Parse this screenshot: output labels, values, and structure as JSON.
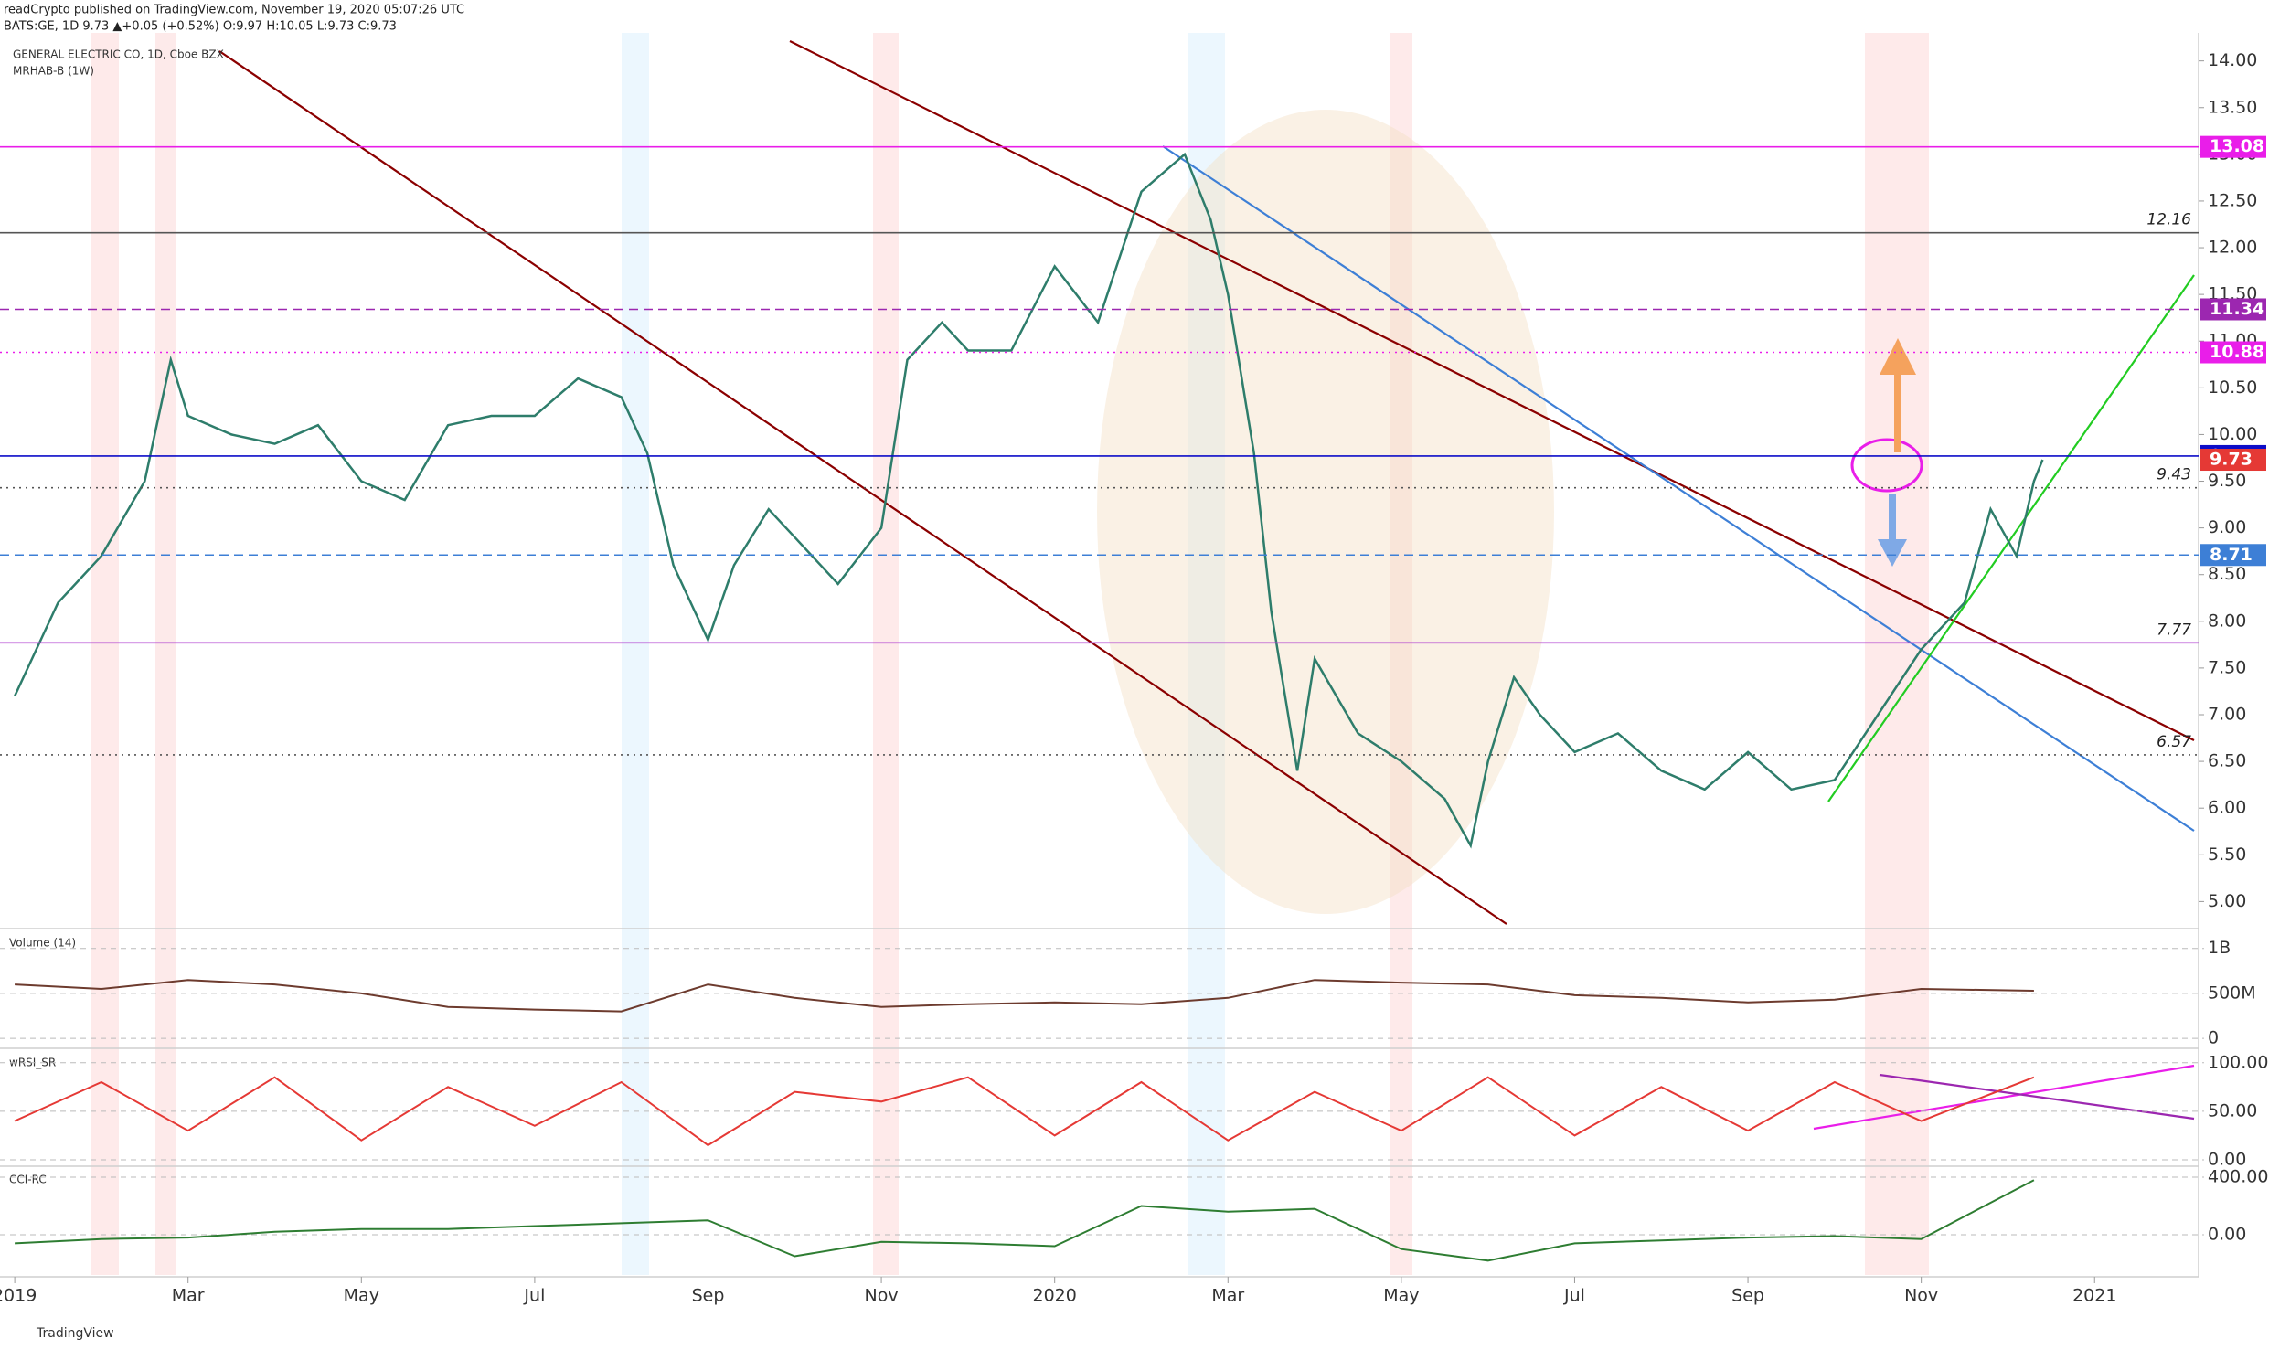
{
  "header": {
    "publisher": "readCrypto published on TradingView.com, November 19, 2020 05:07:26 UTC",
    "symbol": "BATS:GE, 1D 9.73 ▲+0.05 (+0.52%) O:9.97 H:10.05 L:9.73 C:9.73"
  },
  "chart_data": [
    {
      "type": "line",
      "title": "GENERAL ELECTRIC CO, 1D, Cboe BZX",
      "subtitle": "MRHAB-B (1W)",
      "x": [
        0,
        0.5,
        1,
        1.5,
        1.8,
        2,
        2.5,
        3,
        3.5,
        4,
        4.5,
        5,
        5.5,
        6,
        6.5,
        7,
        7.3,
        7.6,
        8,
        8.3,
        8.7,
        9,
        9.5,
        10,
        10.3,
        10.7,
        11,
        11.5,
        12,
        12.5,
        13,
        13.5,
        13.8,
        14,
        14.3,
        14.5,
        14.8,
        15,
        15.5,
        16,
        16.5,
        16.8,
        17,
        17.3,
        17.6,
        18,
        18.5,
        19,
        19.5,
        20,
        20.5,
        21,
        21.5,
        22,
        22.5,
        22.8,
        23.1,
        23.3,
        23.4
      ],
      "series": [
        {
          "color": "#2e7d6b",
          "values": [
            7.2,
            8.2,
            8.7,
            9.5,
            10.8,
            10.2,
            10.0,
            9.9,
            10.1,
            9.5,
            9.3,
            10.1,
            10.2,
            10.2,
            10.6,
            10.4,
            9.8,
            8.6,
            7.8,
            8.6,
            9.2,
            8.9,
            8.4,
            9.0,
            10.8,
            11.2,
            10.9,
            10.9,
            11.8,
            11.2,
            12.6,
            13.0,
            12.3,
            11.5,
            9.8,
            8.1,
            6.4,
            7.6,
            6.8,
            6.5,
            6.1,
            5.6,
            6.5,
            7.4,
            7.0,
            6.6,
            6.8,
            6.4,
            6.2,
            6.6,
            6.2,
            6.3,
            7.0,
            7.7,
            8.2,
            9.2,
            8.7,
            9.5,
            9.73
          ]
        }
      ],
      "xlim": [
        -0.17,
        25.2
      ],
      "xticks": [
        {
          "value": 0,
          "label": "2019"
        },
        {
          "value": 2,
          "label": "Mar"
        },
        {
          "value": 4,
          "label": "May"
        },
        {
          "value": 6,
          "label": "Jul"
        },
        {
          "value": 8,
          "label": "Sep"
        },
        {
          "value": 10,
          "label": "Nov"
        },
        {
          "value": 12,
          "label": "2020"
        },
        {
          "value": 14,
          "label": "Mar"
        },
        {
          "value": 16,
          "label": "May"
        },
        {
          "value": 18,
          "label": "Jul"
        },
        {
          "value": 20,
          "label": "Sep"
        },
        {
          "value": 22,
          "label": "Nov"
        },
        {
          "value": 24,
          "label": "2021"
        }
      ],
      "ylim": [
        4.72,
        14.3
      ],
      "yticks": [
        {
          "value": 5,
          "label": "5.00"
        },
        {
          "value": 5.5,
          "label": "5.50"
        },
        {
          "value": 6,
          "label": "6.00"
        },
        {
          "value": 6.5,
          "label": "6.50"
        },
        {
          "value": 7,
          "label": "7.00"
        },
        {
          "value": 7.5,
          "label": "7.50"
        },
        {
          "value": 8,
          "label": "8.00"
        },
        {
          "value": 8.5,
          "label": "8.50"
        },
        {
          "value": 9,
          "label": "9.00"
        },
        {
          "value": 9.5,
          "label": "9.50"
        },
        {
          "value": 10,
          "label": "10.00"
        },
        {
          "value": 10.5,
          "label": "10.50"
        },
        {
          "value": 11,
          "label": "11.00"
        },
        {
          "value": 11.5,
          "label": "11.50"
        },
        {
          "value": 12,
          "label": "12.00"
        },
        {
          "value": 12.5,
          "label": "12.50"
        },
        {
          "value": 13,
          "label": "13.00"
        },
        {
          "value": 13.5,
          "label": "13.50"
        },
        {
          "value": 14,
          "label": "14.00"
        }
      ],
      "price_levels": [
        {
          "value": 13.08,
          "color": "#e91ee9",
          "line": "solid",
          "tag": "box"
        },
        {
          "value": 12.16,
          "color": "#555555",
          "line": "solid",
          "tag": "italic"
        },
        {
          "value": 11.34,
          "color": "#9c27b0",
          "line": "dashed",
          "tag": "box"
        },
        {
          "value": 10.88,
          "color": "#e91ee9",
          "line": "dotted",
          "tag": "box"
        },
        {
          "value": 9.77,
          "color": "#0d0dc8",
          "line": "solid",
          "tag": "box"
        },
        {
          "value": 9.73,
          "color": "#e53935",
          "line": "none",
          "tag": "box"
        },
        {
          "value": 9.43,
          "color": "#555555",
          "line": "dotted",
          "tag": "italic"
        },
        {
          "value": 8.71,
          "color": "#3d7fd6",
          "line": "dashed",
          "tag": "box"
        },
        {
          "value": 7.77,
          "color": "#b040d0",
          "line": "solid",
          "tag": "italic"
        },
        {
          "value": 6.57,
          "color": "#555555",
          "line": "dotted",
          "tag": "italic"
        }
      ]
    },
    {
      "type": "line",
      "title": "Volume (14)",
      "x": [
        0,
        1,
        2,
        3,
        4,
        5,
        6,
        7,
        8,
        9,
        10,
        11,
        12,
        13,
        14,
        15,
        16,
        17,
        18,
        19,
        20,
        21,
        22,
        23.3
      ],
      "series": [
        {
          "color": "#6d3b2e",
          "values": [
            600000000,
            550000000,
            650000000,
            600000000,
            500000000,
            350000000,
            320000000,
            300000000,
            600000000,
            450000000,
            350000000,
            380000000,
            400000000,
            380000000,
            450000000,
            650000000,
            620000000,
            600000000,
            480000000,
            450000000,
            400000000,
            430000000,
            550000000,
            530000000
          ]
        }
      ],
      "ylim": [
        -100000000,
        1200000000
      ],
      "yticks": [
        {
          "value": 1000000000,
          "label": "1B"
        },
        {
          "value": 500000000,
          "label": "500M"
        },
        0
      ]
    },
    {
      "type": "line",
      "title": "wRSI_SR",
      "x": [
        0,
        1,
        2,
        3,
        4,
        5,
        6,
        7,
        8,
        9,
        10,
        11,
        12,
        13,
        14,
        15,
        16,
        17,
        18,
        19,
        20,
        21,
        22,
        23.3
      ],
      "series": [
        {
          "color": "#e53935",
          "values": [
            40,
            80,
            30,
            85,
            20,
            75,
            35,
            80,
            15,
            70,
            60,
            85,
            25,
            80,
            20,
            70,
            30,
            85,
            25,
            75,
            30,
            80,
            40,
            85
          ]
        }
      ],
      "ylim": [
        -5.7,
        113
      ],
      "yticks": [
        {
          "value": 100,
          "label": "100.00"
        },
        {
          "value": 50,
          "label": "50.00"
        },
        {
          "value": 0,
          "label": "0.00"
        }
      ]
    },
    {
      "type": "line",
      "title": "CCI-RC",
      "x": [
        0,
        1,
        2,
        3,
        4,
        5,
        6,
        7,
        8,
        9,
        10,
        11,
        12,
        13,
        14,
        15,
        16,
        17,
        18,
        19,
        20,
        21,
        22,
        23.3
      ],
      "series": [
        {
          "color": "#2e7d32",
          "values": [
            -60,
            -30,
            -20,
            20,
            40,
            40,
            60,
            80,
            100,
            -150,
            -50,
            -60,
            -80,
            200,
            160,
            180,
            -100,
            -180,
            -60,
            -40,
            -20,
            -10,
            -30,
            380
          ]
        }
      ],
      "ylim": [
        -280,
        470
      ],
      "yticks": [
        {
          "value": 400,
          "label": "400.00"
        },
        {
          "value": 0,
          "label": "0.00"
        }
      ]
    }
  ],
  "footer": "TradingView"
}
